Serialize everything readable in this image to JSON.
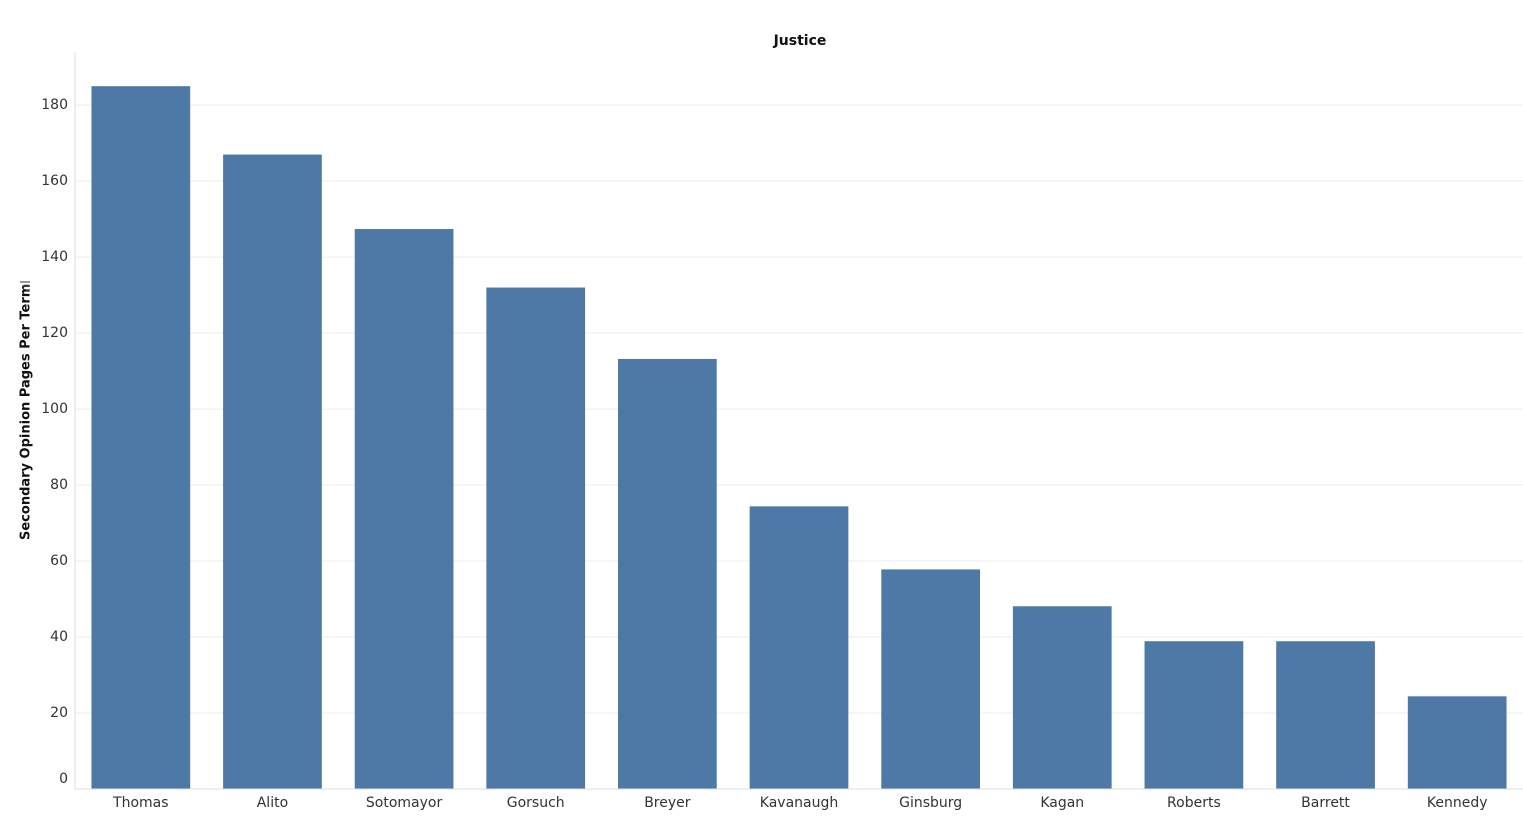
{
  "chart_data": {
    "type": "bar",
    "title": "Justice",
    "y_label": "Secondary Opinion Pages Per Term",
    "categories": [
      "Thomas",
      "Alito",
      "Sotomayor",
      "Gorsuch",
      "Breyer",
      "Kavanaugh",
      "Ginsburg",
      "Kagan",
      "Roberts",
      "Barrett",
      "Kennedy"
    ],
    "values": [
      185,
      167,
      147.4,
      132,
      113.2,
      74.4,
      57.8,
      48.1,
      38.9,
      38.9,
      24.4
    ],
    "color": "#4e79a7",
    "ylim": [
      0,
      194
    ],
    "yticks": [
      0,
      20,
      40,
      60,
      80,
      100,
      120,
      140,
      160,
      180
    ],
    "grid": true
  }
}
